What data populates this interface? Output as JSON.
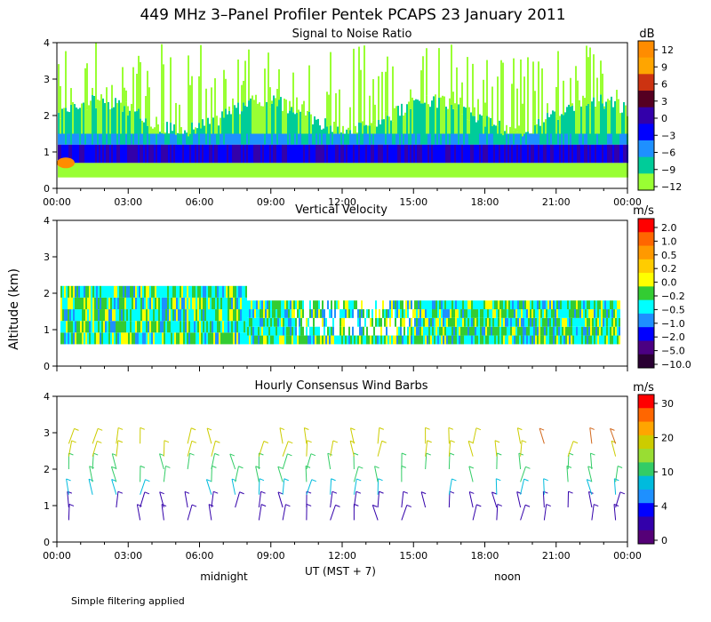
{
  "page": {
    "title": "449 MHz 3–Panel Profiler Pentek PCAPS 23 January 2011",
    "ylabel": "Altitude (km)",
    "xlabel": "UT  (MST + 7)",
    "note": "Simple filtering applied",
    "midnight_label": "midnight",
    "noon_label": "noon"
  },
  "chart_data": [
    {
      "type": "heatmap",
      "title": "Signal to Noise Ratio",
      "unit": "dB",
      "xlim": [
        0,
        24
      ],
      "ylim": [
        0,
        4
      ],
      "y_ticks": [
        "0",
        "1",
        "2",
        "3",
        "4"
      ],
      "x_ticks": [
        "00:00",
        "03:00",
        "06:00",
        "09:00",
        "12:00",
        "15:00",
        "18:00",
        "21:00",
        "00:00"
      ],
      "colorbar": {
        "labels": [
          "12",
          "9",
          "6",
          "3",
          "0",
          "−3",
          "−6",
          "−9",
          "−12"
        ],
        "colors": [
          "#ff8c00",
          "#ffa500",
          "#cc3311",
          "#550022",
          "#3300aa",
          "#0000ff",
          "#1e90ff",
          "#00cc99",
          "#99ff33"
        ]
      }
    },
    {
      "type": "heatmap",
      "title": "Vertical Velocity",
      "unit": "m/s",
      "xlim": [
        0,
        24
      ],
      "ylim": [
        0,
        4
      ],
      "y_ticks": [
        "0",
        "1",
        "2",
        "3",
        "4"
      ],
      "colorbar": {
        "labels": [
          "2.0",
          "1.0",
          "0.5",
          "0.2",
          "0.0",
          "−0.2",
          "−0.5",
          "−1.0",
          "−2.0",
          "−5.0",
          "−10.0"
        ],
        "colors": [
          "#ff0000",
          "#ff6600",
          "#ff9900",
          "#ffcc00",
          "#ffff00",
          "#33cc33",
          "#00ffff",
          "#1e90ff",
          "#0000ff",
          "#4b0082",
          "#2a0033"
        ]
      }
    },
    {
      "type": "scatter",
      "title": "Hourly Consensus Wind Barbs",
      "unit": "m/s",
      "xlim": [
        0,
        24
      ],
      "ylim": [
        0,
        4
      ],
      "y_ticks": [
        "0",
        "1",
        "2",
        "3",
        "4"
      ],
      "x_ticks": [
        "00:00",
        "03:00",
        "06:00",
        "09:00",
        "12:00",
        "15:00",
        "18:00",
        "21:00",
        "00:00"
      ],
      "colorbar": {
        "labels": [
          "30",
          "20",
          "10",
          "4",
          "0"
        ],
        "colors": [
          "#ff0000",
          "#ff6600",
          "#ffa500",
          "#cccc00",
          "#99dd33",
          "#33cc66",
          "#00bbdd",
          "#1e90ff",
          "#0000ff",
          "#3300aa",
          "#550077"
        ]
      }
    }
  ]
}
